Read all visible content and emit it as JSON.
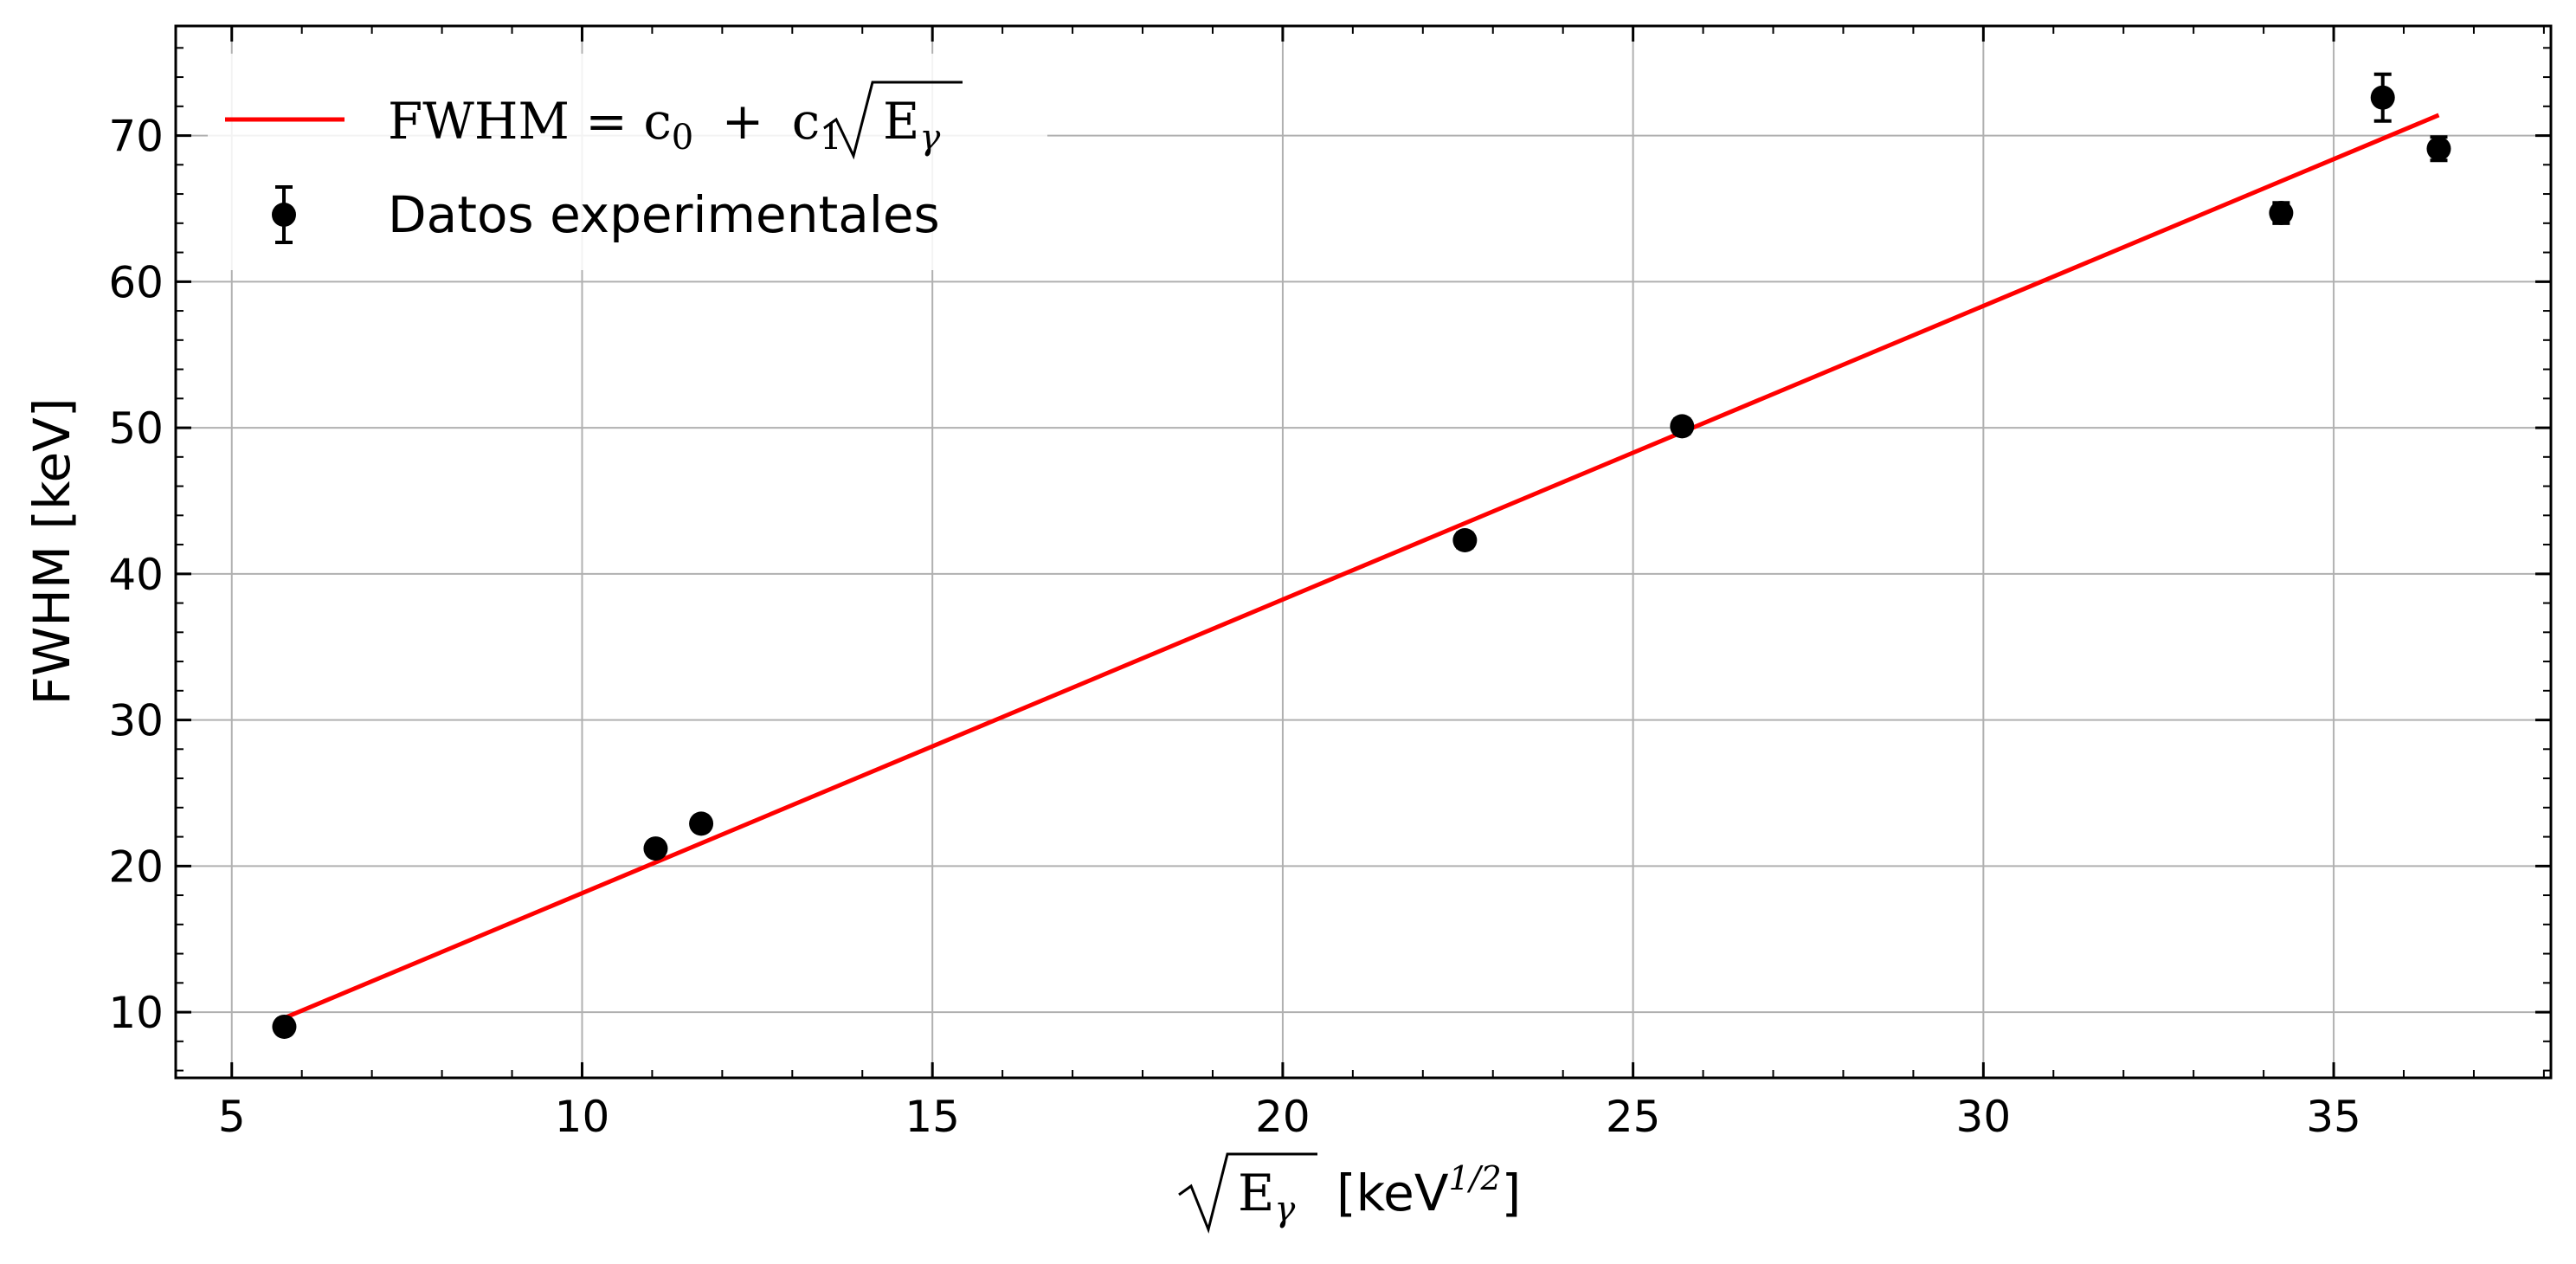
{
  "chart_data": {
    "type": "scatter",
    "xlabel_parts": {
      "radicand": "E",
      "radicand_sub": "γ",
      "unit_open": "[keV",
      "unit_exp": "1/2",
      "unit_close": "]"
    },
    "ylabel": "FWHM [keV]",
    "xlim": [
      4.2,
      38.1
    ],
    "ylim": [
      5.5,
      77.5
    ],
    "xticks": [
      5,
      10,
      15,
      20,
      25,
      30,
      35
    ],
    "yticks": [
      10,
      20,
      30,
      40,
      50,
      60,
      70
    ],
    "grid": true,
    "legend_position": "top-left",
    "series": [
      {
        "name": "Datos experimentales",
        "kind": "errorbar",
        "color": "#000000",
        "x": [
          5.75,
          11.05,
          11.7,
          22.6,
          25.7,
          34.25,
          35.7,
          36.5
        ],
        "y": [
          9.0,
          21.2,
          22.9,
          42.3,
          50.1,
          64.7,
          72.6,
          69.1
        ],
        "yerr": [
          0.4,
          0.4,
          0.4,
          0.5,
          0.5,
          0.7,
          1.6,
          0.8
        ]
      },
      {
        "name_parts": {
          "lhs": "FWHM",
          "eq": "=",
          "c": "c",
          "sub0": "0",
          "plus": "+",
          "sub1": "1",
          "radicand": "E",
          "radicand_sub": "γ"
        },
        "kind": "fit-line",
        "color": "#ff0000",
        "x": [
          5.75,
          36.5
        ],
        "y": [
          9.6,
          71.4
        ]
      }
    ]
  }
}
